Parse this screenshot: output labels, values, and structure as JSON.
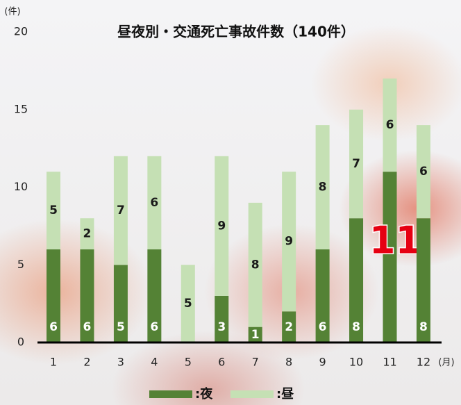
{
  "chart_data": {
    "type": "stacked_bar",
    "title": "昼夜別・交通死亡事故件数（140件）",
    "y_unit": "(件)",
    "x_unit": "(月)",
    "categories": [
      "1",
      "2",
      "3",
      "4",
      "5",
      "6",
      "7",
      "8",
      "9",
      "10",
      "11",
      "12"
    ],
    "series": [
      {
        "name": ":夜",
        "color": "#548235",
        "values": [
          6,
          6,
          5,
          6,
          0,
          3,
          1,
          2,
          6,
          8,
          11,
          8
        ]
      },
      {
        "name": ":昼",
        "color": "#c5e0b4",
        "values": [
          5,
          2,
          7,
          6,
          5,
          9,
          8,
          9,
          8,
          7,
          6,
          6
        ]
      }
    ],
    "ylim": [
      0,
      20
    ],
    "yticks": [
      0,
      5,
      10,
      15,
      20
    ],
    "highlight": {
      "series": 0,
      "index": 10,
      "color": "#e60012"
    }
  }
}
